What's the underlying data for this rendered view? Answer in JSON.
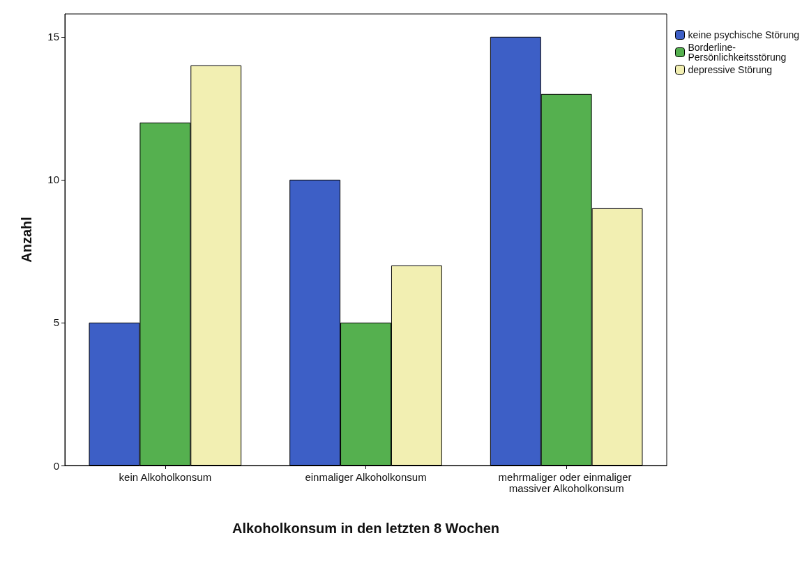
{
  "chart_data": {
    "type": "bar",
    "xlabel": "Alkoholkonsum in den letzten 8 Wochen",
    "ylabel": "Anzahl",
    "categories": [
      "kein Alkoholkonsum",
      "einmaliger Alkoholkonsum",
      "mehrmaliger oder einmaliger massiver Alkoholkonsum"
    ],
    "series": [
      {
        "name": "keine psychische Störung",
        "color": "#3d5fc6",
        "values": [
          5,
          10,
          15
        ]
      },
      {
        "name": "Borderline-Persönlichkeitsstörung",
        "color": "#55b04f",
        "values": [
          12,
          5,
          13
        ]
      },
      {
        "name": "depressive Störung",
        "color": "#f2efb2",
        "values": [
          14,
          7,
          9
        ]
      }
    ],
    "ylim": [
      0,
      15.8
    ],
    "yticks": [
      0,
      5,
      10,
      15
    ],
    "grid": false,
    "legend": "top right"
  }
}
